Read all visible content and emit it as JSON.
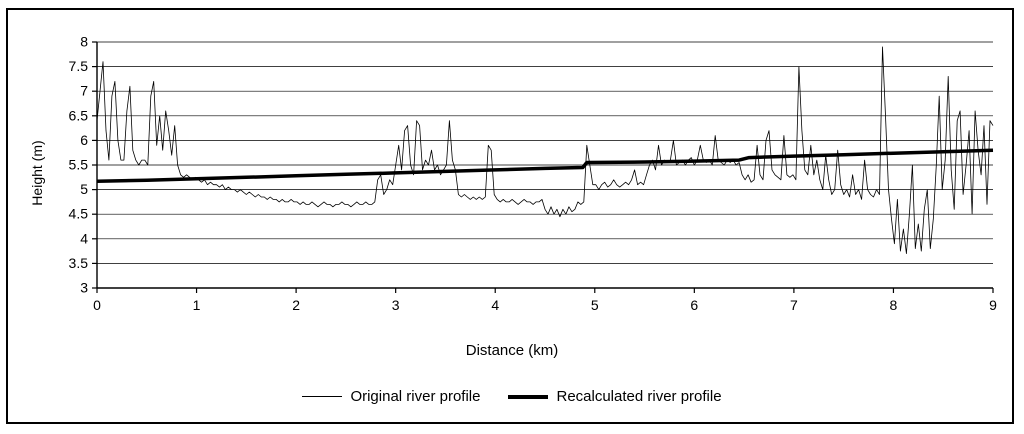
{
  "page": {
    "background": "#ffffff",
    "frame_color": "#000000",
    "line_color": "#000000"
  },
  "chart_data": {
    "type": "line",
    "title": "",
    "xlabel": "Distance (km)",
    "ylabel": "Height (m)",
    "xlim": [
      0,
      9
    ],
    "ylim": [
      3,
      8
    ],
    "x_ticks": [
      0,
      1,
      2,
      3,
      4,
      5,
      6,
      7,
      8,
      9
    ],
    "y_ticks": [
      3,
      3.5,
      4,
      4.5,
      5,
      5.5,
      6,
      6.5,
      7,
      7.5,
      8
    ],
    "grid": "horizontal",
    "legend_position": "bottom",
    "series": [
      {
        "name": "Original river profile",
        "style": "thin",
        "x_start": 0,
        "x_step": 0.03,
        "values": [
          6.4,
          7.0,
          7.6,
          6.2,
          5.6,
          6.9,
          7.2,
          6.0,
          5.6,
          5.6,
          6.6,
          7.1,
          5.8,
          5.6,
          5.5,
          5.6,
          5.6,
          5.5,
          6.9,
          7.2,
          5.9,
          6.5,
          5.8,
          6.6,
          6.2,
          5.7,
          6.3,
          5.5,
          5.3,
          5.25,
          5.3,
          5.25,
          5.2,
          5.25,
          5.2,
          5.15,
          5.2,
          5.1,
          5.15,
          5.1,
          5.1,
          5.05,
          5.1,
          5.0,
          5.05,
          5.0,
          5.0,
          4.95,
          5.0,
          4.95,
          4.9,
          4.95,
          4.9,
          4.85,
          4.9,
          4.85,
          4.85,
          4.8,
          4.85,
          4.8,
          4.8,
          4.75,
          4.8,
          4.75,
          4.75,
          4.8,
          4.75,
          4.75,
          4.7,
          4.75,
          4.7,
          4.7,
          4.75,
          4.7,
          4.65,
          4.7,
          4.75,
          4.7,
          4.7,
          4.65,
          4.7,
          4.7,
          4.75,
          4.7,
          4.7,
          4.65,
          4.7,
          4.75,
          4.7,
          4.7,
          4.75,
          4.7,
          4.7,
          4.75,
          5.2,
          5.3,
          4.9,
          5.0,
          5.2,
          5.1,
          5.5,
          5.9,
          5.4,
          6.2,
          6.3,
          5.5,
          5.3,
          6.4,
          6.3,
          5.4,
          5.6,
          5.5,
          5.8,
          5.4,
          5.5,
          5.3,
          5.4,
          5.5,
          6.4,
          5.6,
          5.4,
          4.9,
          4.85,
          4.9,
          4.85,
          4.8,
          4.85,
          4.8,
          4.85,
          4.8,
          4.85,
          5.9,
          5.8,
          4.9,
          4.8,
          4.75,
          4.8,
          4.75,
          4.75,
          4.8,
          4.75,
          4.7,
          4.75,
          4.8,
          4.75,
          4.75,
          4.7,
          4.75,
          4.75,
          4.8,
          4.6,
          4.5,
          4.65,
          4.5,
          4.6,
          4.45,
          4.6,
          4.5,
          4.65,
          4.55,
          4.6,
          4.75,
          4.7,
          4.75,
          5.9,
          5.5,
          5.1,
          5.1,
          5.0,
          5.1,
          5.15,
          5.05,
          5.1,
          5.2,
          5.1,
          5.05,
          5.1,
          5.15,
          5.1,
          5.2,
          5.4,
          5.1,
          5.15,
          5.1,
          5.3,
          5.5,
          5.6,
          5.4,
          5.9,
          5.5,
          5.6,
          5.55,
          5.6,
          6.0,
          5.5,
          5.55,
          5.6,
          5.5,
          5.6,
          5.65,
          5.5,
          5.6,
          5.9,
          5.6,
          5.55,
          5.6,
          5.5,
          6.1,
          5.6,
          5.55,
          5.5,
          5.6,
          5.55,
          5.6,
          5.5,
          5.55,
          5.3,
          5.2,
          5.3,
          5.15,
          5.2,
          5.9,
          5.3,
          5.2,
          6.0,
          6.2,
          5.4,
          5.3,
          5.25,
          5.2,
          6.1,
          5.3,
          5.25,
          5.3,
          5.2,
          7.5,
          6.2,
          5.4,
          5.3,
          5.9,
          5.3,
          5.6,
          5.2,
          5.0,
          5.7,
          5.2,
          4.9,
          5.0,
          5.8,
          5.1,
          4.9,
          5.0,
          4.85,
          5.3,
          4.9,
          5.0,
          4.8,
          5.6,
          5.0,
          4.9,
          4.85,
          5.0,
          4.9,
          7.9,
          6.5,
          5.0,
          4.4,
          3.9,
          4.8,
          3.75,
          4.2,
          3.7,
          4.5,
          5.5,
          3.8,
          4.3,
          3.75,
          4.6,
          5.0,
          3.8,
          4.4,
          5.5,
          6.9,
          5.0,
          5.6,
          7.3,
          5.4,
          4.6,
          6.4,
          6.6,
          4.9,
          5.5,
          6.2,
          4.5,
          6.6,
          5.8,
          5.3,
          6.3,
          4.7,
          6.4,
          6.3
        ]
      },
      {
        "name": "Recalculated river profile",
        "style": "thick",
        "points": [
          [
            0,
            5.17
          ],
          [
            0.5,
            5.19
          ],
          [
            1,
            5.22
          ],
          [
            1.5,
            5.25
          ],
          [
            2,
            5.28
          ],
          [
            2.5,
            5.31
          ],
          [
            3,
            5.34
          ],
          [
            3.5,
            5.37
          ],
          [
            4,
            5.4
          ],
          [
            4.5,
            5.43
          ],
          [
            4.88,
            5.45
          ],
          [
            4.92,
            5.55
          ],
          [
            5.5,
            5.56
          ],
          [
            6,
            5.58
          ],
          [
            6.45,
            5.6
          ],
          [
            6.55,
            5.65
          ],
          [
            7,
            5.68
          ],
          [
            7.5,
            5.71
          ],
          [
            8,
            5.74
          ],
          [
            8.5,
            5.77
          ],
          [
            9,
            5.8
          ]
        ]
      }
    ]
  }
}
